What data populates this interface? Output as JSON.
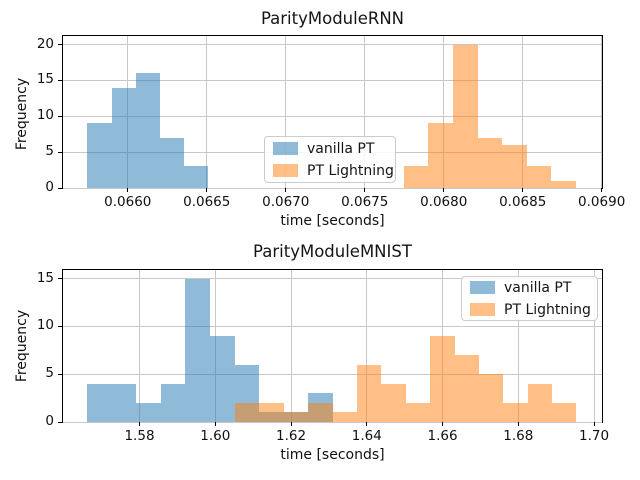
{
  "figure": {
    "background": "#ffffff"
  },
  "colors": {
    "vanilla_pt_fill": "rgba(31,119,180,0.5)",
    "pt_lightning_fill": "rgba(255,127,14,0.5)",
    "grid": "#c8c8c8",
    "spine": "#000000"
  },
  "chart_data": [
    {
      "type": "bar",
      "subtype": "histogram",
      "title": "ParityModuleRNN",
      "xlabel": "time [seconds]",
      "ylabel": "Frequency",
      "grid": true,
      "legend_position": "center",
      "xlim": [
        0.06559,
        0.069002
      ],
      "ylim": [
        0,
        21.2
      ],
      "xticks": [
        0.066,
        0.0665,
        0.067,
        0.0675,
        0.068,
        0.0685,
        0.069
      ],
      "xtick_labels": [
        "0.0660",
        "0.0665",
        "0.0670",
        "0.0675",
        "0.0680",
        "0.0685",
        "0.0690"
      ],
      "yticks": [
        0,
        5,
        10,
        15,
        20
      ],
      "ytick_labels": [
        "0",
        "5",
        "10",
        "15",
        "20"
      ],
      "series": [
        {
          "name": "vanilla PT",
          "color": "rgba(31,119,180,0.5)",
          "bin_start": 0.065745,
          "bin_width": 0.0001525,
          "counts": [
            9,
            14,
            16,
            7,
            3
          ]
        },
        {
          "name": "PT Lightning",
          "color": "rgba(255,127,14,0.5)",
          "bin_start": 0.067747,
          "bin_width": 0.0001558,
          "counts": [
            3,
            9,
            20,
            7,
            6,
            3,
            1
          ]
        }
      ]
    },
    {
      "type": "bar",
      "subtype": "histogram",
      "title": "ParityModuleMNIST",
      "xlabel": "time [seconds]",
      "ylabel": "Frequency",
      "grid": true,
      "legend_position": "upper right",
      "xlim": [
        1.5598,
        1.7021
      ],
      "ylim": [
        0,
        15.9
      ],
      "xticks": [
        1.58,
        1.6,
        1.62,
        1.64,
        1.66,
        1.68,
        1.7
      ],
      "xtick_labels": [
        "1.58",
        "1.60",
        "1.62",
        "1.64",
        "1.66",
        "1.68",
        "1.70"
      ],
      "yticks": [
        0,
        5,
        10,
        15
      ],
      "ytick_labels": [
        "0",
        "5",
        "10",
        "15"
      ],
      "series": [
        {
          "name": "vanilla PT",
          "color": "rgba(31,119,180,0.5)",
          "bin_start": 1.5661,
          "bin_width": 0.0065,
          "counts": [
            4,
            4,
            2,
            4,
            15,
            9,
            6,
            1,
            1,
            3
          ]
        },
        {
          "name": "PT Lightning",
          "color": "rgba(255,127,14,0.5)",
          "bin_start": 1.6052,
          "bin_width": 0.00644,
          "counts": [
            2,
            2,
            1,
            2,
            1,
            6,
            4,
            2,
            9,
            7,
            5,
            2,
            4,
            2
          ]
        }
      ]
    }
  ]
}
